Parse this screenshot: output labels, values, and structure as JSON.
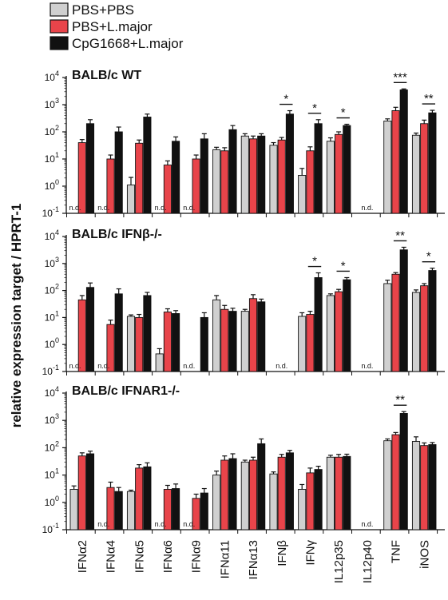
{
  "chart_data": {
    "type": "bar",
    "ylabel": "relative expression target / HPRT-1",
    "yscale": "log",
    "ylim": [
      0.1,
      10000
    ],
    "yticks": [
      "10-1",
      "100",
      "101",
      "102",
      "103",
      "104"
    ],
    "categories": [
      "IFNα2",
      "IFNα4",
      "IFNα5",
      "IFNα6",
      "IFNα9",
      "IFNα11",
      "IFNα13",
      "IFNβ",
      "IFNγ",
      "IL12p35",
      "IL12p40",
      "TNF",
      "iNOS"
    ],
    "legend": [
      {
        "name": "PBS+PBS",
        "color": "#d0d0d0"
      },
      {
        "name": "PBS+L.major",
        "color": "#e8444a"
      },
      {
        "name": "CpG1668+L.major",
        "color": "#111111"
      }
    ],
    "nd_label": "n.d.",
    "panels": [
      {
        "title": "BALB/c WT",
        "series": [
          {
            "name": "PBS+PBS",
            "values": [
              null,
              null,
              1.1,
              null,
              null,
              22,
              70,
              32,
              2.5,
              45,
              null,
              250,
              75
            ],
            "errors": [
              null,
              null,
              1.0,
              null,
              null,
              5,
              15,
              8,
              2.0,
              15,
              null,
              50,
              15
            ]
          },
          {
            "name": "PBS+L.major",
            "values": [
              40,
              10,
              38,
              6,
              10,
              20,
              55,
              50,
              20,
              80,
              null,
              600,
              200
            ],
            "errors": [
              12,
              4,
              12,
              2.5,
              4,
              6,
              15,
              12,
              8,
              20,
              null,
              200,
              70
            ]
          },
          {
            "name": "CpG1668+L.major",
            "values": [
              200,
              100,
              350,
              45,
              55,
              120,
              70,
              450,
              200,
              170,
              null,
              3500,
              500
            ],
            "errors": [
              80,
              50,
              100,
              20,
              30,
              50,
              15,
              150,
              80,
              20,
              null,
              300,
              120
            ]
          }
        ],
        "nd": [
          [
            0,
            0
          ],
          [
            1,
            0
          ],
          [
            3,
            0
          ],
          [
            4,
            0
          ],
          [
            10,
            1
          ]
        ],
        "significance": [
          {
            "category": "IFNβ",
            "label": "*"
          },
          {
            "category": "IFNγ",
            "label": "*"
          },
          {
            "category": "IL12p35",
            "label": "*"
          },
          {
            "category": "TNF",
            "label": "***"
          },
          {
            "category": "iNOS",
            "label": "**"
          }
        ]
      },
      {
        "title": "BALB/c IFNβ-/-",
        "series": [
          {
            "name": "PBS+PBS",
            "values": [
              null,
              null,
              11,
              0.45,
              null,
              45,
              17,
              null,
              11,
              65,
              null,
              180,
              85
            ],
            "errors": [
              null,
              null,
              1.5,
              0.25,
              null,
              20,
              3,
              null,
              4,
              10,
              null,
              60,
              20
            ]
          },
          {
            "name": "PBS+L.major",
            "values": [
              45,
              5.5,
              10,
              16,
              null,
              20,
              50,
              null,
              13,
              90,
              null,
              400,
              150
            ],
            "errors": [
              20,
              2.5,
              3,
              5,
              null,
              8,
              20,
              null,
              4,
              20,
              null,
              60,
              30
            ]
          },
          {
            "name": "CpG1668+L.major",
            "values": [
              130,
              75,
              65,
              14,
              10,
              17,
              38,
              null,
              300,
              250,
              null,
              3200,
              550
            ],
            "errors": [
              60,
              40,
              20,
              4,
              5,
              5,
              10,
              null,
              150,
              50,
              null,
              800,
              120
            ]
          }
        ],
        "nd": [
          [
            0,
            0
          ],
          [
            1,
            0
          ],
          [
            4,
            0
          ],
          [
            7,
            1
          ],
          [
            10,
            1
          ]
        ],
        "significance": [
          {
            "category": "IFNγ",
            "label": "*"
          },
          {
            "category": "IL12p35",
            "label": "*"
          },
          {
            "category": "TNF",
            "label": "**"
          },
          {
            "category": "iNOS",
            "label": "*"
          }
        ]
      },
      {
        "title": "BALB/c IFNAR1-/-",
        "series": [
          {
            "name": "PBS+PBS",
            "values": [
              3,
              null,
              2.5,
              null,
              null,
              10,
              30,
              11,
              3,
              45,
              null,
              180,
              170
            ],
            "errors": [
              1,
              null,
              0.3,
              null,
              null,
              4,
              5,
              2,
              1.5,
              8,
              null,
              30,
              80
            ]
          },
          {
            "name": "PBS+L.major",
            "values": [
              50,
              3.5,
              18,
              3,
              1.4,
              35,
              35,
              45,
              12,
              45,
              null,
              300,
              120
            ],
            "errors": [
              15,
              2,
              6,
              1.2,
              0.6,
              15,
              10,
              12,
              6,
              12,
              null,
              60,
              30
            ]
          },
          {
            "name": "CpG1668+L.major",
            "values": [
              60,
              2.5,
              20,
              3.2,
              2.2,
              40,
              140,
              65,
              16,
              48,
              null,
              1800,
              130
            ],
            "errors": [
              15,
              1,
              8,
              1.5,
              1,
              20,
              70,
              15,
              5,
              10,
              null,
              300,
              25
            ]
          }
        ],
        "nd": [
          [
            1,
            0
          ],
          [
            3,
            0
          ],
          [
            4,
            0
          ],
          [
            10,
            1
          ]
        ],
        "significance": [
          {
            "category": "TNF",
            "label": "**"
          }
        ]
      }
    ]
  }
}
